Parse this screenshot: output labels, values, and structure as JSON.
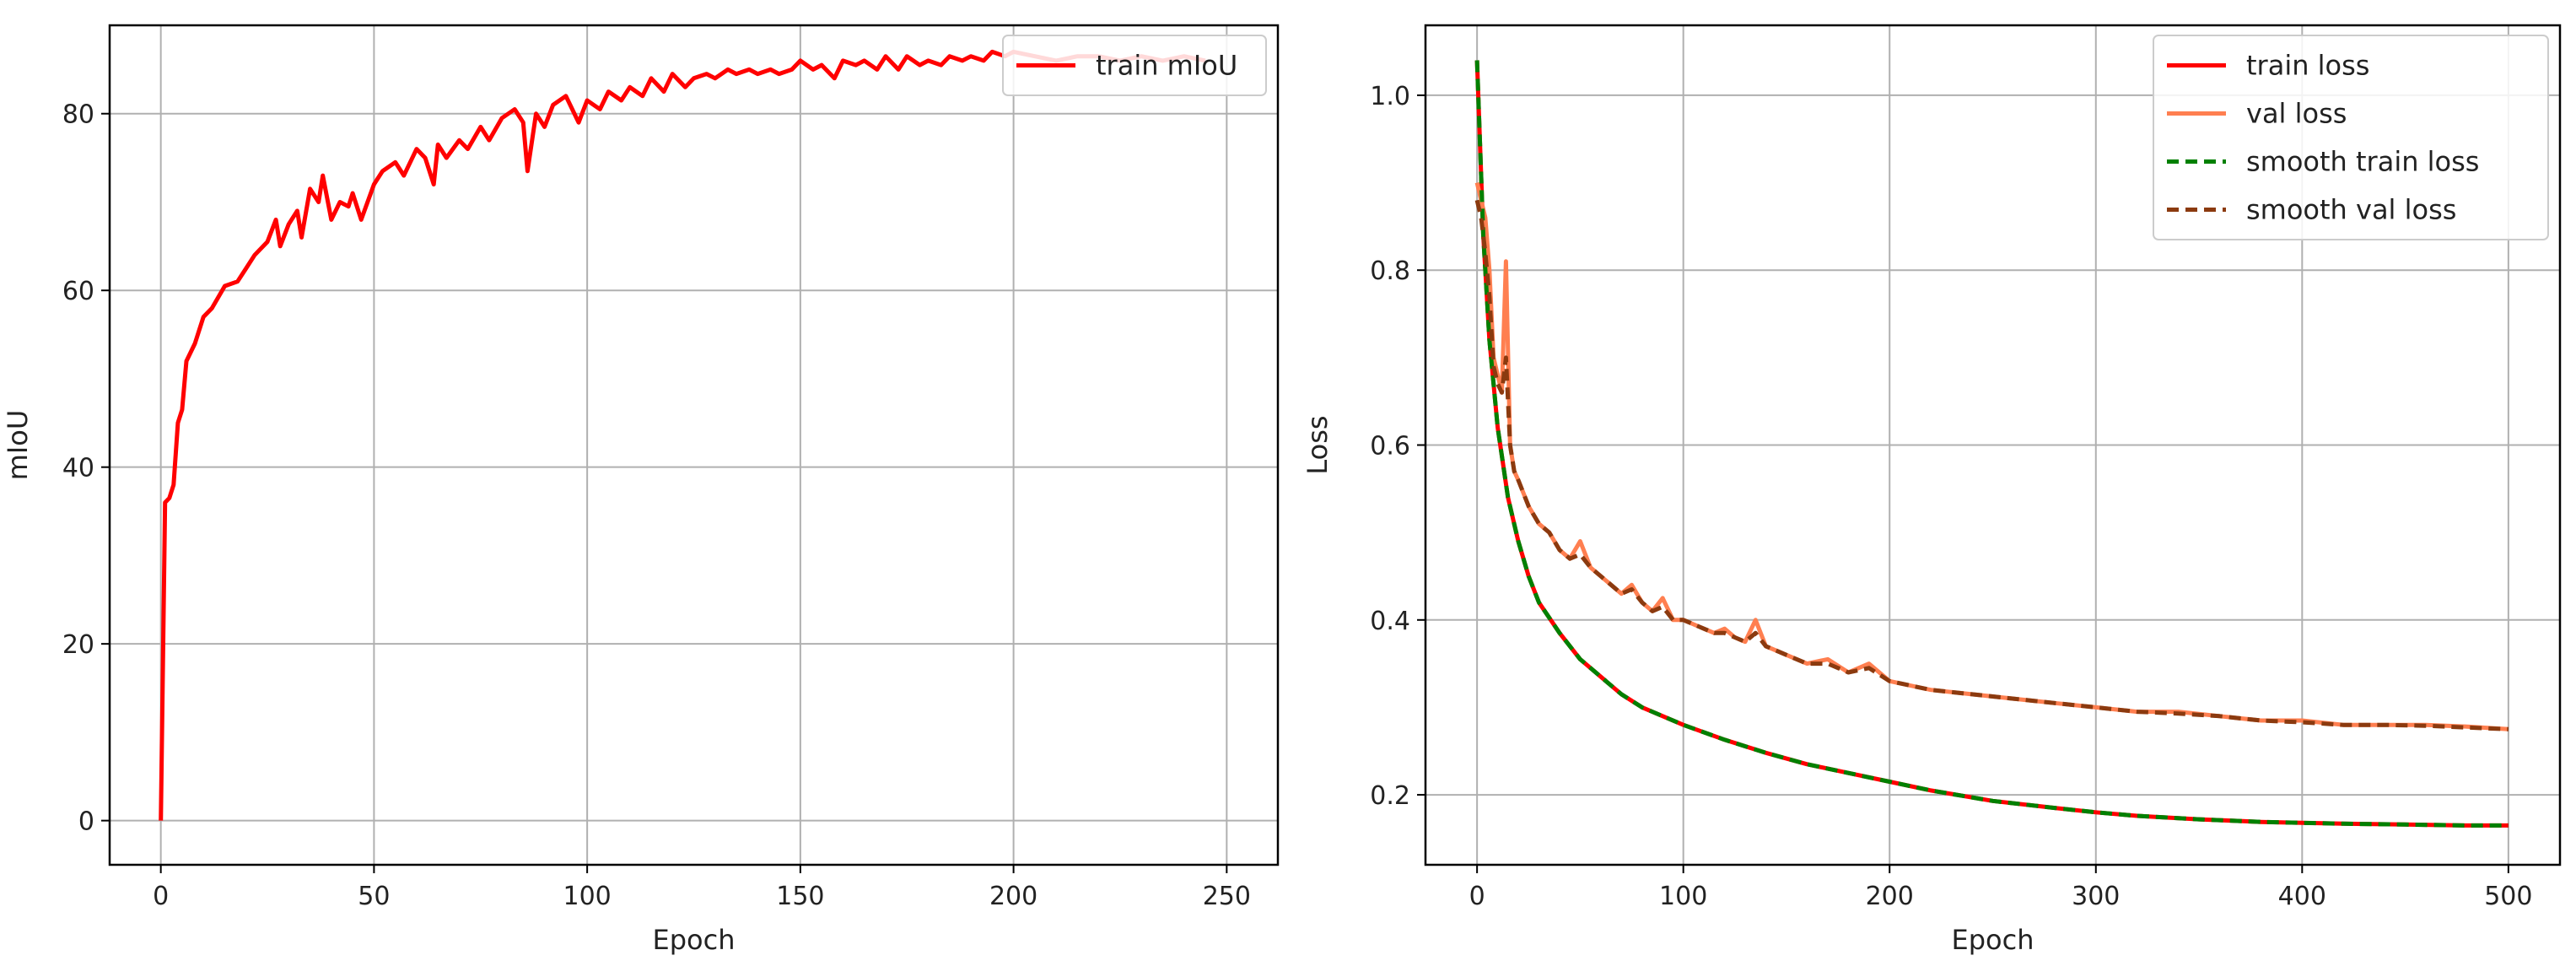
{
  "chart_data": [
    {
      "type": "line",
      "xlabel": "Epoch",
      "ylabel": "mIoU",
      "xlim": [
        -12,
        262
      ],
      "ylim": [
        -5,
        90
      ],
      "xticks": [
        0,
        50,
        100,
        150,
        200,
        250
      ],
      "yticks": [
        0,
        20,
        40,
        60,
        80
      ],
      "grid": true,
      "legend_position": "top-right",
      "series": [
        {
          "name": "train mIoU",
          "color": "#ff0000",
          "style": "solid",
          "x": [
            0,
            1,
            2,
            3,
            4,
            5,
            6,
            8,
            10,
            12,
            15,
            18,
            20,
            22,
            25,
            27,
            28,
            30,
            32,
            33,
            35,
            37,
            38,
            40,
            42,
            44,
            45,
            47,
            50,
            52,
            55,
            57,
            60,
            62,
            64,
            65,
            67,
            70,
            72,
            75,
            77,
            80,
            83,
            85,
            86,
            88,
            90,
            92,
            95,
            98,
            100,
            103,
            105,
            108,
            110,
            113,
            115,
            118,
            120,
            123,
            125,
            128,
            130,
            133,
            135,
            138,
            140,
            143,
            145,
            148,
            150,
            153,
            155,
            158,
            160,
            163,
            165,
            168,
            170,
            173,
            175,
            178,
            180,
            183,
            185,
            188,
            190,
            193,
            195,
            198,
            200,
            205,
            210,
            215,
            220,
            225,
            230,
            235,
            240,
            245
          ],
          "y": [
            0,
            36,
            36.5,
            38,
            45,
            46.5,
            52,
            54,
            57,
            58,
            60.5,
            61,
            62.5,
            64,
            65.5,
            68,
            65,
            67.5,
            69,
            66,
            71.5,
            70,
            73,
            68,
            70,
            69.5,
            71,
            68,
            72,
            73.5,
            74.5,
            73,
            76,
            75,
            72,
            76.5,
            75,
            77,
            76,
            78.5,
            77,
            79.5,
            80.5,
            79,
            73.5,
            80,
            78.5,
            81,
            82,
            79,
            81.5,
            80.5,
            82.5,
            81.5,
            83,
            82,
            84,
            82.5,
            84.5,
            83,
            84,
            84.5,
            84,
            85,
            84.5,
            85,
            84.5,
            85,
            84.5,
            85,
            86,
            85,
            85.5,
            84,
            86,
            85.5,
            86,
            85,
            86.5,
            85,
            86.5,
            85.5,
            86,
            85.5,
            86.5,
            86,
            86.5,
            86,
            87,
            86.5,
            87,
            86.5,
            86,
            86.5,
            86.5,
            86,
            86.5,
            86,
            86.5,
            86
          ]
        }
      ]
    },
    {
      "type": "line",
      "xlabel": "Epoch",
      "ylabel": "Loss",
      "xlim": [
        -25,
        525
      ],
      "ylim": [
        0.12,
        1.08
      ],
      "xticks": [
        0,
        100,
        200,
        300,
        400,
        500
      ],
      "yticks": [
        0.2,
        0.4,
        0.6,
        0.8,
        1.0
      ],
      "ytick_labels": [
        "0.2",
        "0.4",
        "0.6",
        "0.8",
        "1.0"
      ],
      "grid": true,
      "legend_position": "top-right",
      "series": [
        {
          "name": "train loss",
          "color": "#ff0000",
          "style": "solid",
          "x": [
            0,
            3,
            6,
            10,
            15,
            20,
            25,
            30,
            40,
            50,
            60,
            70,
            80,
            90,
            100,
            120,
            140,
            160,
            180,
            200,
            220,
            250,
            280,
            300,
            320,
            350,
            380,
            400,
            420,
            450,
            480,
            500
          ],
          "y": [
            1.04,
            0.84,
            0.72,
            0.62,
            0.54,
            0.49,
            0.45,
            0.42,
            0.385,
            0.355,
            0.335,
            0.315,
            0.3,
            0.29,
            0.28,
            0.263,
            0.248,
            0.235,
            0.225,
            0.215,
            0.205,
            0.193,
            0.185,
            0.18,
            0.176,
            0.172,
            0.169,
            0.168,
            0.167,
            0.166,
            0.165,
            0.165
          ]
        },
        {
          "name": "val loss",
          "color": "#ff7f50",
          "style": "solid",
          "x": [
            0,
            2,
            4,
            6,
            8,
            10,
            12,
            14,
            16,
            18,
            20,
            25,
            30,
            35,
            40,
            45,
            50,
            55,
            60,
            65,
            70,
            75,
            80,
            85,
            90,
            95,
            100,
            105,
            110,
            115,
            120,
            125,
            130,
            135,
            140,
            145,
            150,
            160,
            170,
            180,
            190,
            200,
            220,
            240,
            260,
            280,
            300,
            320,
            340,
            360,
            380,
            400,
            420,
            440,
            460,
            480,
            500
          ],
          "y": [
            0.9,
            0.88,
            0.86,
            0.8,
            0.7,
            0.68,
            0.66,
            0.81,
            0.6,
            0.57,
            0.56,
            0.53,
            0.51,
            0.5,
            0.48,
            0.47,
            0.49,
            0.46,
            0.45,
            0.44,
            0.43,
            0.44,
            0.42,
            0.41,
            0.425,
            0.4,
            0.4,
            0.395,
            0.39,
            0.385,
            0.39,
            0.38,
            0.375,
            0.4,
            0.37,
            0.365,
            0.36,
            0.35,
            0.355,
            0.34,
            0.35,
            0.33,
            0.32,
            0.315,
            0.31,
            0.305,
            0.3,
            0.295,
            0.295,
            0.29,
            0.285,
            0.285,
            0.28,
            0.28,
            0.28,
            0.278,
            0.275
          ]
        },
        {
          "name": "smooth train loss",
          "color": "#008000",
          "style": "dashed",
          "x": [
            0,
            3,
            6,
            10,
            15,
            20,
            25,
            30,
            40,
            50,
            60,
            70,
            80,
            90,
            100,
            120,
            140,
            160,
            180,
            200,
            220,
            250,
            280,
            300,
            320,
            350,
            380,
            400,
            420,
            450,
            480,
            500
          ],
          "y": [
            1.04,
            0.84,
            0.72,
            0.62,
            0.54,
            0.49,
            0.45,
            0.42,
            0.385,
            0.355,
            0.335,
            0.315,
            0.3,
            0.29,
            0.28,
            0.263,
            0.248,
            0.235,
            0.225,
            0.215,
            0.205,
            0.193,
            0.185,
            0.18,
            0.176,
            0.172,
            0.169,
            0.168,
            0.167,
            0.166,
            0.165,
            0.165
          ]
        },
        {
          "name": "smooth val loss",
          "color": "#8b3a0f",
          "style": "dashed",
          "x": [
            0,
            2,
            4,
            6,
            8,
            10,
            12,
            14,
            16,
            18,
            20,
            25,
            30,
            35,
            40,
            45,
            50,
            55,
            60,
            65,
            70,
            75,
            80,
            85,
            90,
            95,
            100,
            105,
            110,
            115,
            120,
            125,
            130,
            135,
            140,
            145,
            150,
            160,
            170,
            180,
            190,
            200,
            220,
            240,
            260,
            280,
            300,
            320,
            340,
            360,
            380,
            400,
            420,
            440,
            460,
            480,
            500
          ],
          "y": [
            0.88,
            0.86,
            0.82,
            0.77,
            0.69,
            0.67,
            0.66,
            0.7,
            0.6,
            0.57,
            0.56,
            0.53,
            0.51,
            0.5,
            0.48,
            0.47,
            0.475,
            0.46,
            0.45,
            0.44,
            0.43,
            0.435,
            0.42,
            0.41,
            0.415,
            0.4,
            0.4,
            0.395,
            0.39,
            0.385,
            0.385,
            0.38,
            0.375,
            0.385,
            0.37,
            0.365,
            0.36,
            0.35,
            0.35,
            0.34,
            0.345,
            0.33,
            0.32,
            0.315,
            0.31,
            0.305,
            0.3,
            0.295,
            0.293,
            0.29,
            0.285,
            0.283,
            0.28,
            0.28,
            0.279,
            0.277,
            0.275
          ]
        }
      ]
    }
  ]
}
